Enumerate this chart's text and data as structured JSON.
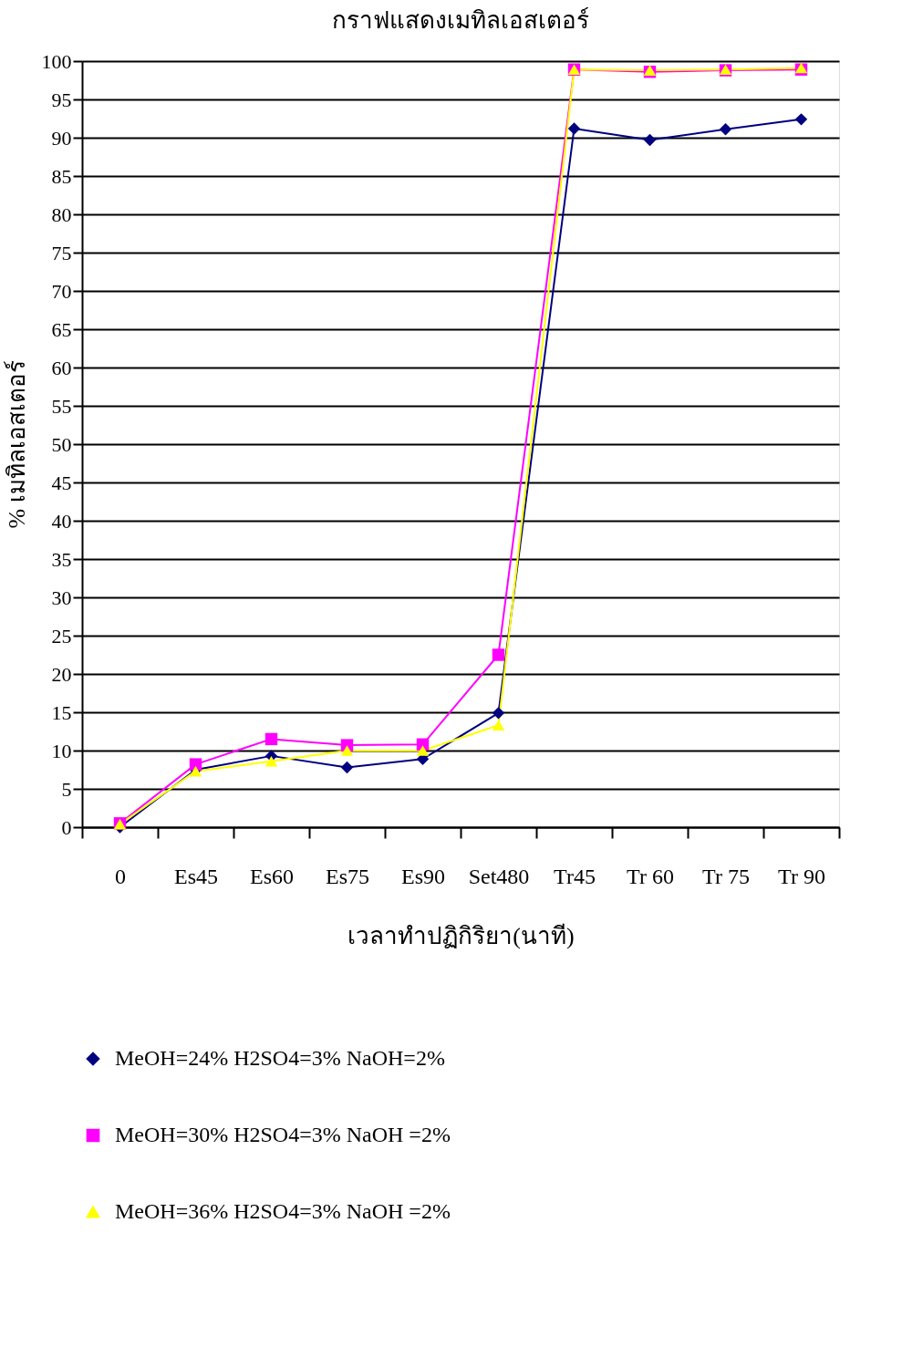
{
  "chart_data": {
    "type": "line",
    "title": "กราฟแสดงเมทิลเอสเตอร์",
    "xlabel": "เวลาทำปฏิกิริยา(นาที)",
    "ylabel": "% เมทิลเอสเตอร์",
    "categories": [
      "0",
      "Es45",
      "Es60",
      "Es75",
      "Es90",
      "Set480",
      "Tr45",
      "Tr 60",
      "Tr 75",
      "Tr 90"
    ],
    "series": [
      {
        "name": "MeOH=24% H2SO4=3% NaOH=2%",
        "color": "#000080",
        "marker": "diamond",
        "values": [
          0,
          7.5,
          9.3,
          7.8,
          8.9,
          14.9,
          91.2,
          89.7,
          91.1,
          92.4
        ]
      },
      {
        "name": "MeOH=30% H2SO4=3% NaOH =2%",
        "color": "#ff00ff",
        "marker": "square",
        "values": [
          0.5,
          8.2,
          11.5,
          10.7,
          10.8,
          22.5,
          98.9,
          98.6,
          98.8,
          98.9
        ]
      },
      {
        "name": "MeOH=36% H2SO4=3% NaOH =2%",
        "color": "#ffff00",
        "marker": "triangle",
        "values": [
          0.4,
          7.3,
          8.6,
          10.0,
          10.0,
          13.3,
          98.9,
          98.8,
          98.9,
          99.1
        ]
      }
    ],
    "ylim": [
      0,
      100
    ],
    "yticks": [
      0,
      5,
      10,
      15,
      20,
      25,
      30,
      35,
      40,
      45,
      50,
      55,
      60,
      65,
      70,
      75,
      80,
      85,
      90,
      95,
      100
    ],
    "grid": "y",
    "legend": "bottom",
    "line_style": "solid"
  }
}
